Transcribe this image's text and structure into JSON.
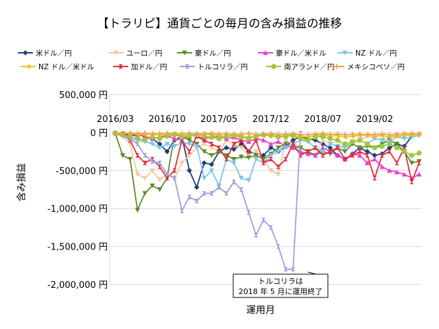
{
  "chart_data": {
    "type": "line",
    "title": "【トラリピ】通貨ごとの毎月の含み損益の推移",
    "xlabel": "運用月",
    "ylabel": "含み損益",
    "ylim": [
      -2000000,
      500000
    ],
    "yticks": [
      {
        "value": 500000,
        "label": "500,000 円"
      },
      {
        "value": 0,
        "label": "0 円"
      },
      {
        "value": -500000,
        "label": "-500,000 円"
      },
      {
        "value": -1000000,
        "label": "-1,000,000 円"
      },
      {
        "value": -1500000,
        "label": "-1,500,000 円"
      },
      {
        "value": -2000000,
        "label": "-2,000,000 円"
      }
    ],
    "x": [
      "2016/03",
      "2016/04",
      "2016/05",
      "2016/06",
      "2016/07",
      "2016/08",
      "2016/09",
      "2016/10",
      "2016/11",
      "2016/12",
      "2017/01",
      "2017/02",
      "2017/03",
      "2017/04",
      "2017/05",
      "2017/06",
      "2017/07",
      "2017/08",
      "2017/09",
      "2017/10",
      "2017/11",
      "2017/12",
      "2018/01",
      "2018/02",
      "2018/03",
      "2018/04",
      "2018/05",
      "2018/06",
      "2018/07",
      "2018/08",
      "2018/09",
      "2018/10",
      "2018/11",
      "2018/12",
      "2019/01",
      "2019/02",
      "2019/03",
      "2019/04",
      "2019/05",
      "2019/06",
      "2019/07",
      "2019/08"
    ],
    "x_tick_labels": [
      {
        "index": 0,
        "label": "2016/03"
      },
      {
        "index": 7,
        "label": "2016/10"
      },
      {
        "index": 14,
        "label": "2017/05"
      },
      {
        "index": 21,
        "label": "2017/12"
      },
      {
        "index": 28,
        "label": "2018/07"
      },
      {
        "index": 35,
        "label": "2019/02"
      }
    ],
    "grid": true,
    "legend_position": "top",
    "annotation": {
      "line1": "トルコリラは",
      "line2": "2018 年 5 月に運用終了",
      "x": "2018/05",
      "y": -1800000
    },
    "series": [
      {
        "name": "米ドル／円",
        "color": "#1f3f7a",
        "marker": "diamond",
        "values": [
          -5000,
          -20000,
          -40000,
          -30000,
          -50000,
          -80000,
          -150000,
          -250000,
          -100000,
          -50000,
          -500000,
          -720000,
          -400000,
          -420000,
          -250000,
          -200000,
          -220000,
          -150000,
          -250000,
          -280000,
          -300000,
          -200000,
          -250000,
          -180000,
          -100000,
          -50000,
          -80000,
          -100000,
          -150000,
          -200000,
          -300000,
          -350000,
          -280000,
          -200000,
          -250000,
          -300000,
          -280000,
          -200000,
          -150000,
          -180000,
          -50000,
          -20000
        ]
      },
      {
        "name": "ユーロ／円",
        "color": "#f7c79b",
        "marker": "triangle-down",
        "values": [
          -20000,
          -50000,
          -150000,
          -550000,
          -600000,
          -500000,
          -620000,
          -550000,
          -600000,
          -400000,
          -300000,
          -200000,
          -150000,
          -200000,
          -250000,
          -100000,
          -150000,
          -200000,
          -300000,
          -250000,
          -350000,
          -500000,
          -550000,
          -100000,
          -150000,
          -200000,
          -250000,
          -300000,
          -100000,
          -150000,
          -100000,
          -200000,
          -150000,
          -100000,
          -50000,
          -80000,
          -100000,
          -60000,
          -30000,
          -20000,
          -40000,
          -30000
        ]
      },
      {
        "name": "豪ドル／円",
        "color": "#5b8c2a",
        "marker": "triangle-down",
        "values": [
          -10000,
          -300000,
          -350000,
          -1020000,
          -800000,
          -700000,
          -750000,
          -600000,
          -30000,
          -50000,
          -100000,
          -150000,
          -250000,
          -300000,
          -250000,
          -300000,
          -350000,
          -320000,
          -330000,
          -300000,
          -350000,
          -280000,
          -200000,
          -150000,
          -180000,
          -200000,
          -250000,
          -300000,
          -250000,
          -280000,
          -200000,
          -250000,
          -150000,
          -200000,
          -180000,
          -200000,
          -150000,
          -100000,
          -150000,
          -250000,
          -400000,
          -380000
        ]
      },
      {
        "name": "豪ドル／米ドル",
        "color": "#e841d0",
        "marker": "triangle-up",
        "values": [
          -5000,
          -10000,
          -20000,
          -30000,
          -50000,
          -80000,
          -60000,
          -40000,
          -80000,
          -100000,
          -30000,
          -50000,
          -80000,
          -60000,
          -50000,
          -80000,
          -60000,
          -100000,
          -120000,
          -80000,
          -100000,
          -150000,
          -120000,
          -180000,
          -200000,
          -250000,
          -280000,
          -300000,
          -200000,
          -250000,
          -300000,
          -350000,
          -280000,
          -300000,
          -400000,
          -350000,
          -450000,
          -500000,
          -520000,
          -550000,
          -600000,
          -550000
        ]
      },
      {
        "name": "NZ ドル／円",
        "color": "#7dc4ea",
        "marker": "triangle-down",
        "values": [
          -10000,
          -50000,
          -80000,
          -100000,
          -120000,
          -150000,
          -200000,
          -150000,
          -180000,
          -130000,
          -150000,
          -180000,
          -600000,
          -500000,
          -700000,
          -350000,
          -400000,
          -600000,
          -630000,
          -350000,
          -400000,
          -300000,
          -250000,
          -200000,
          -150000,
          -100000,
          -120000,
          -200000,
          -250000,
          -150000,
          -180000,
          -200000,
          -120000,
          -100000,
          -150000,
          -80000,
          -100000,
          -120000,
          -50000,
          -80000,
          -60000,
          -40000
        ]
      },
      {
        "name": "NZ ドル／米ドル",
        "color": "#f2c51c",
        "marker": "triangle-left",
        "values": [
          -5000,
          -10000,
          -15000,
          -20000,
          -30000,
          -20000,
          -40000,
          -30000,
          -20000,
          -30000,
          -40000,
          -30000,
          -20000,
          -30000,
          -40000,
          -50000,
          -30000,
          -40000,
          -60000,
          -50000,
          -40000,
          -30000,
          -50000,
          -40000,
          -30000,
          -50000,
          -60000,
          -40000,
          -30000,
          -50000,
          -40000,
          -60000,
          -50000,
          -40000,
          -30000,
          -50000,
          -40000,
          -60000,
          -50000,
          -40000,
          -30000,
          -20000
        ]
      },
      {
        "name": "加ドル／円",
        "color": "#e42b3a",
        "marker": "bowtie",
        "values": [
          -10000,
          -20000,
          -100000,
          -300000,
          -400000,
          -350000,
          -450000,
          -600000,
          -500000,
          -100000,
          -250000,
          -50000,
          -100000,
          -150000,
          -200000,
          -350000,
          -150000,
          -100000,
          -250000,
          -100000,
          -400000,
          -350000,
          -450000,
          -350000,
          -150000,
          -300000,
          -250000,
          -200000,
          -300000,
          -250000,
          -200000,
          -350000,
          -300000,
          -250000,
          -300000,
          -600000,
          -300000,
          -250000,
          -400000,
          -200000,
          -650000,
          -400000
        ]
      },
      {
        "name": "トルコリラ／円",
        "color": "#9e9ee0",
        "marker": "bowtie",
        "values": [
          -10000,
          -30000,
          -80000,
          -150000,
          -300000,
          -380000,
          -400000,
          -550000,
          -600000,
          -1030000,
          -850000,
          -900000,
          -800000,
          -800000,
          -720000,
          -800000,
          -650000,
          -750000,
          -1050000,
          -1350000,
          -1150000,
          -1250000,
          -1500000,
          -1800000,
          -1800000,
          -10000,
          null,
          null,
          null,
          null,
          null,
          null,
          null,
          null,
          null,
          null,
          null,
          null,
          null,
          null,
          null,
          null
        ]
      },
      {
        "name": "南アランド／円",
        "color": "#9dc93a",
        "marker": "circle",
        "values": [
          -10000,
          -30000,
          -50000,
          -80000,
          -100000,
          -60000,
          -80000,
          -50000,
          -30000,
          -60000,
          -40000,
          -30000,
          -50000,
          -60000,
          -80000,
          -50000,
          -40000,
          -60000,
          -80000,
          -50000,
          -30000,
          -40000,
          -60000,
          -50000,
          -40000,
          -80000,
          -100000,
          -60000,
          -50000,
          -80000,
          -100000,
          -150000,
          -120000,
          -100000,
          -150000,
          -200000,
          -180000,
          -150000,
          -200000,
          -250000,
          -300000,
          -270000
        ]
      },
      {
        "name": "メキシコペソ／円",
        "color": "#e8a24a",
        "marker": "plus",
        "values": [
          -5000,
          -10000,
          -8000,
          -15000,
          -10000,
          -20000,
          -15000,
          -10000,
          -20000,
          -15000,
          -10000,
          -20000,
          -15000,
          -10000,
          -20000,
          -15000,
          -25000,
          -20000,
          -15000,
          -25000,
          -20000,
          -15000,
          -25000,
          -20000,
          -15000,
          -25000,
          -30000,
          -20000,
          -15000,
          -25000,
          -20000,
          -30000,
          -25000,
          -20000,
          -30000,
          -25000,
          -20000,
          -30000,
          -25000,
          -20000,
          -15000,
          -20000
        ]
      }
    ]
  }
}
